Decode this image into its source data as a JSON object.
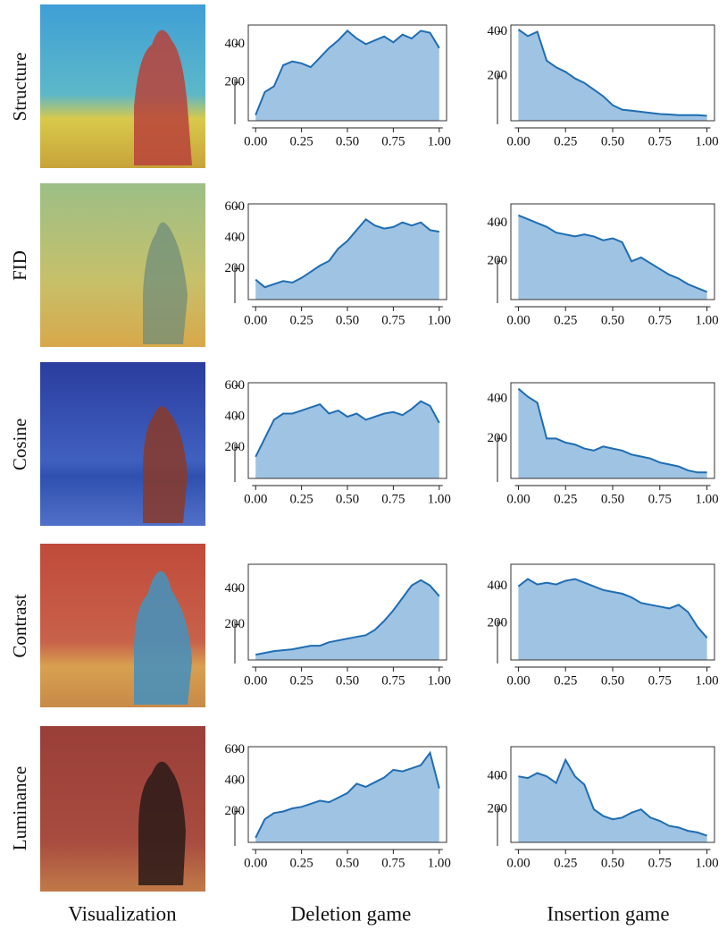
{
  "row_labels": [
    "Structure",
    "FID",
    "Cosine",
    "Contrast",
    "Luminance"
  ],
  "column_labels": [
    "Visualization",
    "Deletion game",
    "Insertion game"
  ],
  "chart_data": [
    {
      "type": "area",
      "color": "#1f6db3",
      "fill": "#9fc3e3",
      "xlim": [
        -0.04,
        1.04
      ],
      "ylim": [
        0,
        500
      ],
      "yticks": [
        200,
        400
      ],
      "xticks": [
        {
          "value": 0,
          "label": "0.00"
        },
        {
          "value": 0.25,
          "label": "0.25"
        },
        {
          "value": 0.5,
          "label": "0.50"
        },
        {
          "value": 0.75,
          "label": "0.75"
        },
        {
          "value": 1,
          "label": "1.00"
        }
      ],
      "x": [
        0,
        0.05,
        0.1,
        0.15,
        0.2,
        0.25,
        0.3,
        0.35,
        0.4,
        0.45,
        0.5,
        0.55,
        0.6,
        0.65,
        0.7,
        0.75,
        0.8,
        0.85,
        0.9,
        0.95,
        1
      ],
      "values": [
        30,
        150,
        180,
        290,
        310,
        300,
        280,
        330,
        380,
        420,
        470,
        430,
        400,
        420,
        440,
        410,
        450,
        430,
        470,
        460,
        380
      ]
    },
    {
      "type": "area",
      "color": "#1f6db3",
      "fill": "#9fc3e3",
      "xlim": [
        -0.04,
        1.04
      ],
      "ylim": [
        0,
        430
      ],
      "yticks": [
        200,
        400
      ],
      "xticks": [
        {
          "value": 0,
          "label": "0.00"
        },
        {
          "value": 0.25,
          "label": "0.25"
        },
        {
          "value": 0.5,
          "label": "0.50"
        },
        {
          "value": 0.75,
          "label": "0.75"
        },
        {
          "value": 1,
          "label": "1.00"
        }
      ],
      "x": [
        0,
        0.05,
        0.1,
        0.15,
        0.2,
        0.25,
        0.3,
        0.35,
        0.4,
        0.45,
        0.5,
        0.55,
        0.6,
        0.65,
        0.7,
        0.75,
        0.8,
        0.85,
        0.9,
        0.95,
        1
      ],
      "values": [
        410,
        380,
        400,
        270,
        240,
        220,
        190,
        170,
        140,
        110,
        70,
        50,
        45,
        40,
        35,
        30,
        28,
        25,
        25,
        25,
        22
      ]
    },
    {
      "type": "area",
      "color": "#1f6db3",
      "fill": "#9fc3e3",
      "xlim": [
        -0.04,
        1.04
      ],
      "ylim": [
        0,
        620
      ],
      "yticks": [
        200,
        400,
        600
      ],
      "xticks": [
        {
          "value": 0,
          "label": "0.00"
        },
        {
          "value": 0.25,
          "label": "0.25"
        },
        {
          "value": 0.5,
          "label": "0.50"
        },
        {
          "value": 0.75,
          "label": "0.75"
        },
        {
          "value": 1,
          "label": "1.00"
        }
      ],
      "x": [
        0,
        0.05,
        0.1,
        0.15,
        0.2,
        0.25,
        0.3,
        0.35,
        0.4,
        0.45,
        0.5,
        0.55,
        0.6,
        0.65,
        0.7,
        0.75,
        0.8,
        0.85,
        0.9,
        0.95,
        1
      ],
      "values": [
        130,
        80,
        100,
        120,
        110,
        140,
        180,
        220,
        250,
        330,
        380,
        450,
        520,
        480,
        460,
        470,
        500,
        480,
        500,
        450,
        440
      ]
    },
    {
      "type": "area",
      "color": "#1f6db3",
      "fill": "#9fc3e3",
      "xlim": [
        -0.04,
        1.04
      ],
      "ylim": [
        0,
        500
      ],
      "yticks": [
        200,
        400
      ],
      "xticks": [
        {
          "value": 0,
          "label": "0.00"
        },
        {
          "value": 0.25,
          "label": "0.25"
        },
        {
          "value": 0.5,
          "label": "0.50"
        },
        {
          "value": 0.75,
          "label": "0.75"
        },
        {
          "value": 1,
          "label": "1.00"
        }
      ],
      "x": [
        0,
        0.05,
        0.1,
        0.15,
        0.2,
        0.25,
        0.3,
        0.35,
        0.4,
        0.45,
        0.5,
        0.55,
        0.6,
        0.65,
        0.7,
        0.75,
        0.8,
        0.85,
        0.9,
        0.95,
        1
      ],
      "values": [
        440,
        420,
        400,
        380,
        350,
        340,
        330,
        340,
        330,
        310,
        320,
        300,
        200,
        220,
        190,
        160,
        130,
        110,
        80,
        60,
        40
      ]
    },
    {
      "type": "area",
      "color": "#1f6db3",
      "fill": "#9fc3e3",
      "xlim": [
        -0.04,
        1.04
      ],
      "ylim": [
        0,
        620
      ],
      "yticks": [
        200,
        400,
        600
      ],
      "xticks": [
        {
          "value": 0,
          "label": "0.00"
        },
        {
          "value": 0.25,
          "label": "0.25"
        },
        {
          "value": 0.5,
          "label": "0.50"
        },
        {
          "value": 0.75,
          "label": "0.75"
        },
        {
          "value": 1,
          "label": "1.00"
        }
      ],
      "x": [
        0,
        0.05,
        0.1,
        0.15,
        0.2,
        0.25,
        0.3,
        0.35,
        0.4,
        0.45,
        0.5,
        0.55,
        0.6,
        0.65,
        0.7,
        0.75,
        0.8,
        0.85,
        0.9,
        0.95,
        1
      ],
      "values": [
        140,
        260,
        380,
        420,
        420,
        440,
        460,
        480,
        420,
        440,
        400,
        420,
        380,
        400,
        420,
        430,
        410,
        450,
        500,
        470,
        360
      ]
    },
    {
      "type": "area",
      "color": "#1f6db3",
      "fill": "#9fc3e3",
      "xlim": [
        -0.04,
        1.04
      ],
      "ylim": [
        0,
        480
      ],
      "yticks": [
        200,
        400
      ],
      "xticks": [
        {
          "value": 0,
          "label": "0.00"
        },
        {
          "value": 0.25,
          "label": "0.25"
        },
        {
          "value": 0.5,
          "label": "0.50"
        },
        {
          "value": 0.75,
          "label": "0.75"
        },
        {
          "value": 1,
          "label": "1.00"
        }
      ],
      "x": [
        0,
        0.05,
        0.1,
        0.15,
        0.2,
        0.25,
        0.3,
        0.35,
        0.4,
        0.45,
        0.5,
        0.55,
        0.6,
        0.65,
        0.7,
        0.75,
        0.8,
        0.85,
        0.9,
        0.95,
        1
      ],
      "values": [
        450,
        410,
        380,
        200,
        200,
        180,
        170,
        150,
        140,
        160,
        150,
        140,
        120,
        110,
        100,
        80,
        70,
        60,
        40,
        30,
        30
      ]
    },
    {
      "type": "area",
      "color": "#1f6db3",
      "fill": "#9fc3e3",
      "xlim": [
        -0.04,
        1.04
      ],
      "ylim": [
        0,
        540
      ],
      "yticks": [
        200,
        400
      ],
      "xticks": [
        {
          "value": 0,
          "label": "0.00"
        },
        {
          "value": 0.25,
          "label": "0.25"
        },
        {
          "value": 0.5,
          "label": "0.50"
        },
        {
          "value": 0.75,
          "label": "0.75"
        },
        {
          "value": 1,
          "label": "1.00"
        }
      ],
      "x": [
        0,
        0.05,
        0.1,
        0.15,
        0.2,
        0.25,
        0.3,
        0.35,
        0.4,
        0.45,
        0.5,
        0.55,
        0.6,
        0.65,
        0.7,
        0.75,
        0.8,
        0.85,
        0.9,
        0.95,
        1
      ],
      "values": [
        30,
        40,
        50,
        55,
        60,
        70,
        80,
        80,
        100,
        110,
        120,
        130,
        140,
        170,
        220,
        280,
        350,
        420,
        450,
        420,
        360
      ]
    },
    {
      "type": "area",
      "color": "#1f6db3",
      "fill": "#9fc3e3",
      "xlim": [
        -0.04,
        1.04
      ],
      "ylim": [
        0,
        520
      ],
      "yticks": [
        200,
        400
      ],
      "xticks": [
        {
          "value": 0,
          "label": "0.00"
        },
        {
          "value": 0.25,
          "label": "0.25"
        },
        {
          "value": 0.5,
          "label": "0.50"
        },
        {
          "value": 0.75,
          "label": "0.75"
        },
        {
          "value": 1,
          "label": "1.00"
        }
      ],
      "x": [
        0,
        0.05,
        0.1,
        0.15,
        0.2,
        0.25,
        0.3,
        0.35,
        0.4,
        0.45,
        0.5,
        0.55,
        0.6,
        0.65,
        0.7,
        0.75,
        0.8,
        0.85,
        0.9,
        0.95,
        1
      ],
      "values": [
        400,
        440,
        410,
        420,
        410,
        430,
        440,
        420,
        400,
        380,
        370,
        360,
        340,
        310,
        300,
        290,
        280,
        300,
        260,
        180,
        120
      ]
    },
    {
      "type": "area",
      "color": "#1f6db3",
      "fill": "#9fc3e3",
      "xlim": [
        -0.04,
        1.04
      ],
      "ylim": [
        0,
        620
      ],
      "yticks": [
        200,
        400,
        600
      ],
      "xticks": [
        {
          "value": 0,
          "label": "0.00"
        },
        {
          "value": 0.25,
          "label": "0.25"
        },
        {
          "value": 0.5,
          "label": "0.50"
        },
        {
          "value": 0.75,
          "label": "0.75"
        },
        {
          "value": 1,
          "label": "1.00"
        }
      ],
      "x": [
        0,
        0.05,
        0.1,
        0.15,
        0.2,
        0.25,
        0.3,
        0.35,
        0.4,
        0.45,
        0.5,
        0.55,
        0.6,
        0.65,
        0.7,
        0.75,
        0.8,
        0.85,
        0.9,
        0.95,
        1
      ],
      "values": [
        30,
        150,
        190,
        200,
        220,
        230,
        250,
        270,
        260,
        290,
        320,
        380,
        360,
        390,
        420,
        470,
        460,
        480,
        500,
        580,
        350
      ]
    },
    {
      "type": "area",
      "color": "#1f6db3",
      "fill": "#9fc3e3",
      "xlim": [
        -0.04,
        1.04
      ],
      "ylim": [
        0,
        580
      ],
      "yticks": [
        200,
        400
      ],
      "xticks": [
        {
          "value": 0,
          "label": "0.00"
        },
        {
          "value": 0.25,
          "label": "0.25"
        },
        {
          "value": 0.5,
          "label": "0.50"
        },
        {
          "value": 0.75,
          "label": "0.75"
        },
        {
          "value": 1,
          "label": "1.00"
        }
      ],
      "x": [
        0,
        0.05,
        0.1,
        0.15,
        0.2,
        0.25,
        0.3,
        0.35,
        0.4,
        0.45,
        0.5,
        0.55,
        0.6,
        0.65,
        0.7,
        0.75,
        0.8,
        0.85,
        0.9,
        0.95,
        1
      ],
      "values": [
        400,
        390,
        420,
        400,
        360,
        500,
        400,
        350,
        200,
        160,
        140,
        150,
        180,
        200,
        150,
        130,
        100,
        90,
        70,
        60,
        40
      ]
    }
  ]
}
